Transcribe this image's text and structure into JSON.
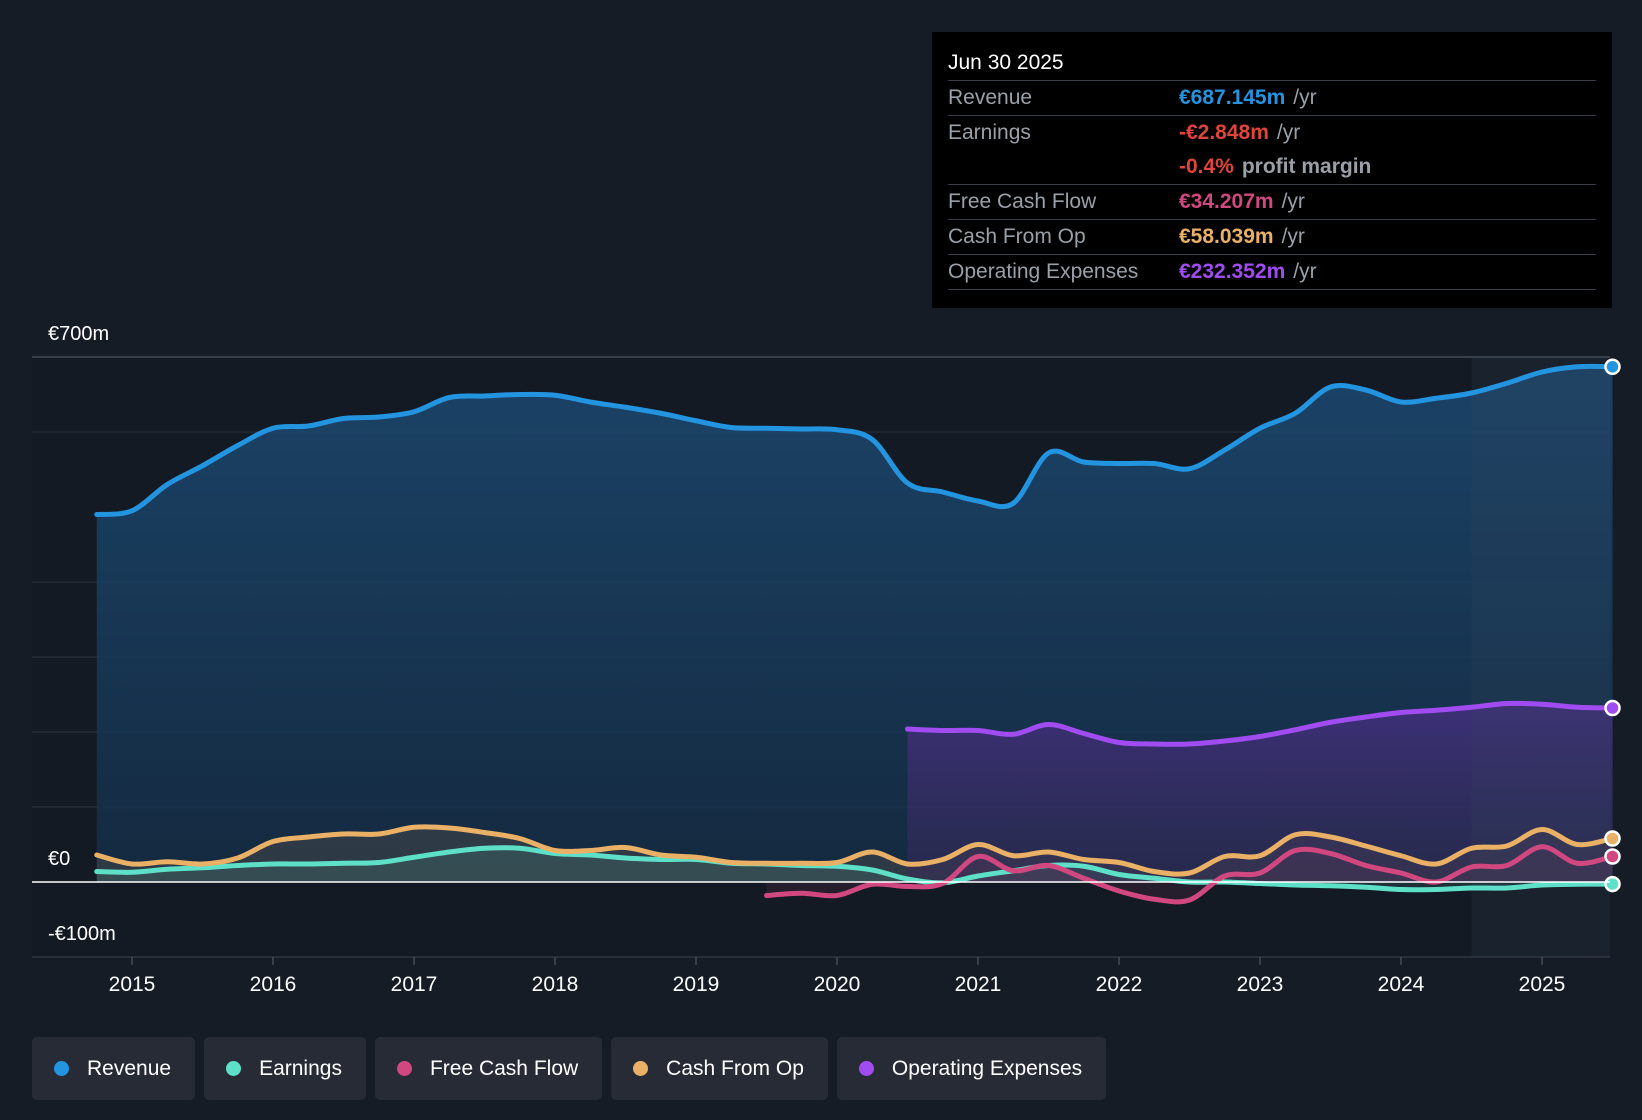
{
  "chart_data": {
    "type": "area",
    "y_axis": {
      "top_label": "€700m",
      "zero_label": "€0",
      "bottom_label": "-€100m",
      "ylim": [
        -100,
        700
      ],
      "gridlines": [
        0,
        100,
        200,
        300,
        400,
        600,
        700
      ]
    },
    "x_axis": {
      "ticks": [
        "2015",
        "2016",
        "2017",
        "2018",
        "2019",
        "2020",
        "2021",
        "2022",
        "2023",
        "2024",
        "2025"
      ],
      "tick_values": [
        2015,
        2016,
        2017,
        2018,
        2019,
        2020,
        2021,
        2022,
        2023,
        2024,
        2025
      ],
      "xlim": [
        2014.3,
        2025.5
      ]
    },
    "forecast_start": 2024.5,
    "series": [
      {
        "key": "revenue",
        "name": "Revenue",
        "color": "#2394e0",
        "points": [
          [
            2014.75,
            490
          ],
          [
            2015.0,
            495
          ],
          [
            2015.25,
            530
          ],
          [
            2015.5,
            555
          ],
          [
            2015.75,
            582
          ],
          [
            2016.0,
            605
          ],
          [
            2016.25,
            608
          ],
          [
            2016.5,
            618
          ],
          [
            2016.75,
            620
          ],
          [
            2017.0,
            627
          ],
          [
            2017.25,
            646
          ],
          [
            2017.5,
            648
          ],
          [
            2017.75,
            650
          ],
          [
            2018.0,
            649
          ],
          [
            2018.25,
            640
          ],
          [
            2018.5,
            633
          ],
          [
            2018.75,
            625
          ],
          [
            2019.0,
            615
          ],
          [
            2019.25,
            606
          ],
          [
            2019.5,
            605
          ],
          [
            2019.75,
            604
          ],
          [
            2020.0,
            603
          ],
          [
            2020.25,
            590
          ],
          [
            2020.5,
            532
          ],
          [
            2020.75,
            520
          ],
          [
            2021.0,
            508
          ],
          [
            2021.25,
            505
          ],
          [
            2021.5,
            572
          ],
          [
            2021.75,
            560
          ],
          [
            2022.0,
            558
          ],
          [
            2022.25,
            558
          ],
          [
            2022.5,
            551
          ],
          [
            2022.75,
            576
          ],
          [
            2023.0,
            605
          ],
          [
            2023.25,
            625
          ],
          [
            2023.5,
            660
          ],
          [
            2023.75,
            656
          ],
          [
            2024.0,
            640
          ],
          [
            2024.25,
            645
          ],
          [
            2024.5,
            652
          ],
          [
            2024.75,
            665
          ],
          [
            2025.0,
            680
          ],
          [
            2025.25,
            687
          ],
          [
            2025.5,
            687
          ]
        ]
      },
      {
        "key": "earnings",
        "name": "Earnings",
        "color": "#5ee0c8",
        "points": [
          [
            2014.75,
            14
          ],
          [
            2015.0,
            13
          ],
          [
            2015.25,
            17
          ],
          [
            2015.5,
            19
          ],
          [
            2015.75,
            22
          ],
          [
            2016.0,
            24
          ],
          [
            2016.25,
            24
          ],
          [
            2016.5,
            25
          ],
          [
            2016.75,
            26
          ],
          [
            2017.0,
            33
          ],
          [
            2017.25,
            40
          ],
          [
            2017.5,
            45
          ],
          [
            2017.75,
            45
          ],
          [
            2018.0,
            38
          ],
          [
            2018.25,
            36
          ],
          [
            2018.5,
            32
          ],
          [
            2018.75,
            30
          ],
          [
            2019.0,
            30
          ],
          [
            2019.25,
            25
          ],
          [
            2019.5,
            24
          ],
          [
            2019.75,
            22
          ],
          [
            2020.0,
            21
          ],
          [
            2020.25,
            16
          ],
          [
            2020.5,
            4
          ],
          [
            2020.75,
            -1
          ],
          [
            2021.0,
            8
          ],
          [
            2021.25,
            15
          ],
          [
            2021.5,
            22
          ],
          [
            2021.75,
            21
          ],
          [
            2022.0,
            10
          ],
          [
            2022.25,
            5
          ],
          [
            2022.5,
            0
          ],
          [
            2022.75,
            0
          ],
          [
            2023.0,
            -2
          ],
          [
            2023.25,
            -4
          ],
          [
            2023.5,
            -5
          ],
          [
            2023.75,
            -7
          ],
          [
            2024.0,
            -10
          ],
          [
            2024.25,
            -10
          ],
          [
            2024.5,
            -8
          ],
          [
            2024.75,
            -8
          ],
          [
            2025.0,
            -4
          ],
          [
            2025.25,
            -3
          ],
          [
            2025.5,
            -2.8
          ]
        ]
      },
      {
        "key": "fcf",
        "name": "Free Cash Flow",
        "color": "#d0487f",
        "points": [
          [
            2019.5,
            -18
          ],
          [
            2019.75,
            -15
          ],
          [
            2020.0,
            -18
          ],
          [
            2020.25,
            -3
          ],
          [
            2020.5,
            -6
          ],
          [
            2020.75,
            -2
          ],
          [
            2021.0,
            34
          ],
          [
            2021.25,
            15
          ],
          [
            2021.5,
            22
          ],
          [
            2021.75,
            5
          ],
          [
            2022.0,
            -12
          ],
          [
            2022.25,
            -23
          ],
          [
            2022.5,
            -24
          ],
          [
            2022.75,
            8
          ],
          [
            2023.0,
            12
          ],
          [
            2023.25,
            42
          ],
          [
            2023.5,
            38
          ],
          [
            2023.75,
            22
          ],
          [
            2024.0,
            12
          ],
          [
            2024.25,
            0
          ],
          [
            2024.5,
            20
          ],
          [
            2024.75,
            22
          ],
          [
            2025.0,
            47
          ],
          [
            2025.25,
            25
          ],
          [
            2025.5,
            34
          ]
        ]
      },
      {
        "key": "cfo",
        "name": "Cash From Op",
        "color": "#e9b066",
        "points": [
          [
            2014.75,
            36
          ],
          [
            2015.0,
            24
          ],
          [
            2015.25,
            27
          ],
          [
            2015.5,
            24
          ],
          [
            2015.75,
            32
          ],
          [
            2016.0,
            54
          ],
          [
            2016.25,
            60
          ],
          [
            2016.5,
            64
          ],
          [
            2016.75,
            64
          ],
          [
            2017.0,
            73
          ],
          [
            2017.25,
            72
          ],
          [
            2017.5,
            66
          ],
          [
            2017.75,
            58
          ],
          [
            2018.0,
            42
          ],
          [
            2018.25,
            42
          ],
          [
            2018.5,
            46
          ],
          [
            2018.75,
            36
          ],
          [
            2019.0,
            33
          ],
          [
            2019.25,
            26
          ],
          [
            2019.5,
            25
          ],
          [
            2019.75,
            25
          ],
          [
            2020.0,
            26
          ],
          [
            2020.25,
            40
          ],
          [
            2020.5,
            24
          ],
          [
            2020.75,
            30
          ],
          [
            2021.0,
            50
          ],
          [
            2021.25,
            35
          ],
          [
            2021.5,
            40
          ],
          [
            2021.75,
            30
          ],
          [
            2022.0,
            26
          ],
          [
            2022.25,
            14
          ],
          [
            2022.5,
            12
          ],
          [
            2022.75,
            34
          ],
          [
            2023.0,
            35
          ],
          [
            2023.25,
            63
          ],
          [
            2023.5,
            60
          ],
          [
            2023.75,
            48
          ],
          [
            2024.0,
            35
          ],
          [
            2024.25,
            24
          ],
          [
            2024.5,
            45
          ],
          [
            2024.75,
            48
          ],
          [
            2025.0,
            70
          ],
          [
            2025.25,
            50
          ],
          [
            2025.5,
            58
          ]
        ]
      },
      {
        "key": "opex",
        "name": "Operating Expenses",
        "color": "#a14cf0",
        "points": [
          [
            2020.5,
            204
          ],
          [
            2020.75,
            202
          ],
          [
            2021.0,
            202
          ],
          [
            2021.25,
            197
          ],
          [
            2021.5,
            210
          ],
          [
            2021.75,
            198
          ],
          [
            2022.0,
            186
          ],
          [
            2022.25,
            184
          ],
          [
            2022.5,
            184
          ],
          [
            2022.75,
            188
          ],
          [
            2023.0,
            194
          ],
          [
            2023.25,
            203
          ],
          [
            2023.5,
            213
          ],
          [
            2023.75,
            220
          ],
          [
            2024.0,
            226
          ],
          [
            2024.25,
            229
          ],
          [
            2024.5,
            233
          ],
          [
            2024.75,
            238
          ],
          [
            2025.0,
            237
          ],
          [
            2025.25,
            233
          ],
          [
            2025.5,
            232
          ]
        ]
      }
    ]
  },
  "tooltip": {
    "date": "Jun 30 2025",
    "rows": [
      {
        "label": "Revenue",
        "value": "€687.145m",
        "unit": "/yr",
        "color": "#2394e0"
      },
      {
        "label": "Earnings",
        "value": "-€2.848m",
        "unit": "/yr",
        "color": "#e0453a"
      },
      {
        "label": "",
        "value": "-0.4%",
        "unit": "profit margin",
        "color": "#e0453a"
      },
      {
        "label": "Free Cash Flow",
        "value": "€34.207m",
        "unit": "/yr",
        "color": "#d0487f"
      },
      {
        "label": "Cash From Op",
        "value": "€58.039m",
        "unit": "/yr",
        "color": "#e9b066"
      },
      {
        "label": "Operating Expenses",
        "value": "€232.352m",
        "unit": "/yr",
        "color": "#a14cf0"
      }
    ]
  },
  "legend": [
    {
      "label": "Revenue",
      "color": "#2394e0"
    },
    {
      "label": "Earnings",
      "color": "#5ee0c8"
    },
    {
      "label": "Free Cash Flow",
      "color": "#d0487f"
    },
    {
      "label": "Cash From Op",
      "color": "#e9b066"
    },
    {
      "label": "Operating Expenses",
      "color": "#a14cf0"
    }
  ]
}
